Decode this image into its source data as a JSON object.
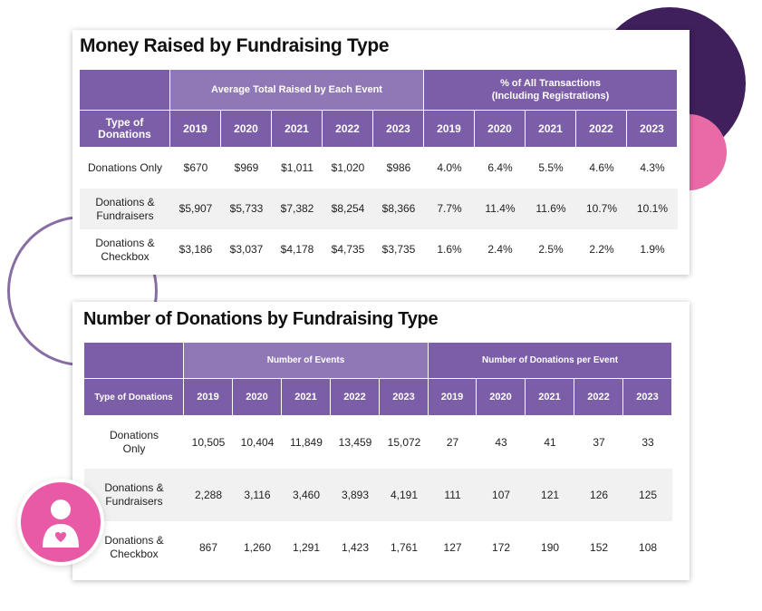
{
  "colors": {
    "header_purple": "#7b5ea7",
    "header_light_purple": "#8f78b5",
    "dark_circle": "#3f1f5c",
    "pink": "#e86aa6",
    "avatar_pink": "#e85aa5",
    "row_shade": "#f1f1f1"
  },
  "decorations": {
    "avatar_icon": "user-heart-icon"
  },
  "money_table": {
    "title": "Money Raised by Fundraising Type",
    "group1_label": "Average Total Raised by Each Event",
    "group2_label_line1": "% of All Transactions",
    "group2_label_line2": "(Including Registrations)",
    "type_header_line1": "Type of",
    "type_header_line2": "Donations",
    "years": [
      "2019",
      "2020",
      "2021",
      "2022",
      "2023"
    ],
    "rows": [
      {
        "type_line1": "Donations Only",
        "type_line2": "",
        "avg": [
          "$670",
          "$969",
          "$1,011",
          "$1,020",
          "$986"
        ],
        "pct": [
          "4.0%",
          "6.4%",
          "5.5%",
          "4.6%",
          "4.3%"
        ]
      },
      {
        "type_line1": "Donations &",
        "type_line2": "Fundraisers",
        "avg": [
          "$5,907",
          "$5,733",
          "$7,382",
          "$8,254",
          "$8,366"
        ],
        "pct": [
          "7.7%",
          "11.4%",
          "11.6%",
          "10.7%",
          "10.1%"
        ]
      },
      {
        "type_line1": "Donations &",
        "type_line2": "Checkbox",
        "avg": [
          "$3,186",
          "$3,037",
          "$4,178",
          "$4,735",
          "$3,735"
        ],
        "pct": [
          "1.6%",
          "2.4%",
          "2.5%",
          "2.2%",
          "1.9%"
        ]
      }
    ]
  },
  "count_table": {
    "title": "Number of Donations by Fundraising Type",
    "group1_label": "Number of Events",
    "group2_label": "Number of Donations per Event",
    "type_header": "Type of Donations",
    "years": [
      "2019",
      "2020",
      "2021",
      "2022",
      "2023"
    ],
    "rows": [
      {
        "type_line1": "Donations",
        "type_line2": "Only",
        "events": [
          "10,505",
          "10,404",
          "11,849",
          "13,459",
          "15,072"
        ],
        "per_event": [
          "27",
          "43",
          "41",
          "37",
          "33"
        ]
      },
      {
        "type_line1": "Donations &",
        "type_line2": "Fundraisers",
        "events": [
          "2,288",
          "3,116",
          "3,460",
          "3,893",
          "4,191"
        ],
        "per_event": [
          "111",
          "107",
          "121",
          "126",
          "125"
        ]
      },
      {
        "type_line1": "Donations &",
        "type_line2": "Checkbox",
        "events": [
          "867",
          "1,260",
          "1,291",
          "1,423",
          "1,761"
        ],
        "per_event": [
          "127",
          "172",
          "190",
          "152",
          "108"
        ]
      }
    ]
  }
}
